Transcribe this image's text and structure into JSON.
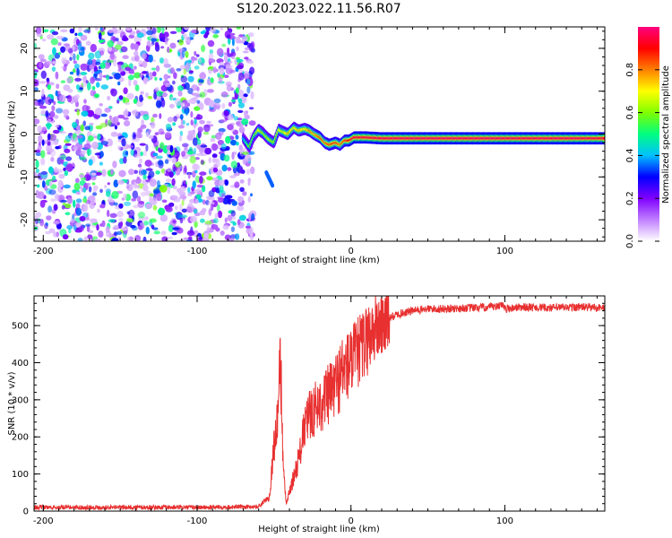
{
  "title": "S120.2023.022.11.56.R07",
  "chart_data": [
    {
      "type": "heatmap",
      "title": "",
      "xlabel": "Height of straight line (km)",
      "ylabel": "Frequency (Hz)",
      "xlim": [
        -206,
        165
      ],
      "ylim": [
        -25,
        25
      ],
      "xticks": [
        -200,
        -100,
        0,
        100
      ],
      "yticks": [
        -20,
        -10,
        0,
        10,
        20
      ],
      "colorbar": {
        "label": "Normalized spectral amplitude",
        "range": [
          0,
          1
        ],
        "ticks": [
          0.0,
          0.2,
          0.4,
          0.6,
          0.8
        ],
        "tick_labels": [
          "0.0",
          "0.2",
          "0.4",
          "0.6",
          "0.8"
        ],
        "colormap": [
          "#ffffff",
          "#c080ff",
          "#8000ff",
          "#0000ff",
          "#00c0ff",
          "#00ff80",
          "#80ff00",
          "#ffff00",
          "#ff8000",
          "#ff0000",
          "#ff0080"
        ]
      },
      "noise_region_x": [
        -206,
        -67
      ],
      "ridge": {
        "x": [
          -70,
          -66,
          -63,
          -60,
          -57,
          -54,
          -50,
          -47,
          -44,
          -41,
          -37,
          -34,
          -30,
          -27,
          -24,
          -20,
          -17,
          -14,
          -10,
          -7,
          -4,
          -1,
          2,
          10,
          20,
          40,
          60,
          80,
          100,
          120,
          140,
          165
        ],
        "y": [
          -1,
          -3,
          -0.5,
          1,
          0.2,
          -1,
          -2,
          1,
          0.5,
          0,
          1.5,
          0.8,
          1.2,
          0.8,
          0,
          -0.8,
          -2,
          -2.5,
          -2,
          -2.5,
          -1.5,
          -1.5,
          -0.8,
          -0.8,
          -1,
          -1,
          -1,
          -1,
          -1,
          -1,
          -1,
          -1
        ],
        "amplitude": [
          0.4,
          0.6,
          0.55,
          0.7,
          0.6,
          0.65,
          0.6,
          0.7,
          0.65,
          0.75,
          0.7,
          0.75,
          0.7,
          0.8,
          0.75,
          0.85,
          0.8,
          0.85,
          0.85,
          0.8,
          0.85,
          0.9,
          0.95,
          0.95,
          0.97,
          0.98,
          0.98,
          0.98,
          0.98,
          0.97,
          0.98,
          0.95
        ]
      },
      "side_feature": {
        "x": [
          -55,
          -51
        ],
        "y": [
          -9,
          -12
        ]
      }
    },
    {
      "type": "line",
      "title": "",
      "xlabel": "Height of straight line (km)",
      "ylabel": "SNR (10 * v/v)",
      "xlim": [
        -206,
        165
      ],
      "ylim": [
        0,
        580
      ],
      "xticks": [
        -200,
        -100,
        0,
        100
      ],
      "yticks": [
        0,
        100,
        200,
        300,
        400,
        500
      ],
      "line_color": "#e83030",
      "series": [
        {
          "x": [
            -206,
            -150,
            -100,
            -60,
            -53,
            -50,
            -48,
            -46,
            -45,
            -44,
            -43,
            -42,
            -40,
            -38,
            -36,
            -34,
            -32,
            -30,
            -28,
            -25,
            -20,
            -15,
            -10,
            -5,
            0,
            5,
            10,
            15,
            20,
            25,
            30,
            35,
            40,
            50,
            60,
            80,
            95,
            98,
            100,
            110,
            130,
            150,
            165
          ],
          "y": [
            10,
            10,
            10,
            12,
            40,
            180,
            230,
            400,
            300,
            120,
            60,
            20,
            50,
            80,
            110,
            140,
            180,
            230,
            250,
            270,
            290,
            310,
            340,
            380,
            400,
            430,
            460,
            490,
            505,
            520,
            530,
            535,
            540,
            545,
            545,
            548,
            550,
            560,
            545,
            550,
            548,
            550,
            548
          ]
        }
      ]
    }
  ]
}
